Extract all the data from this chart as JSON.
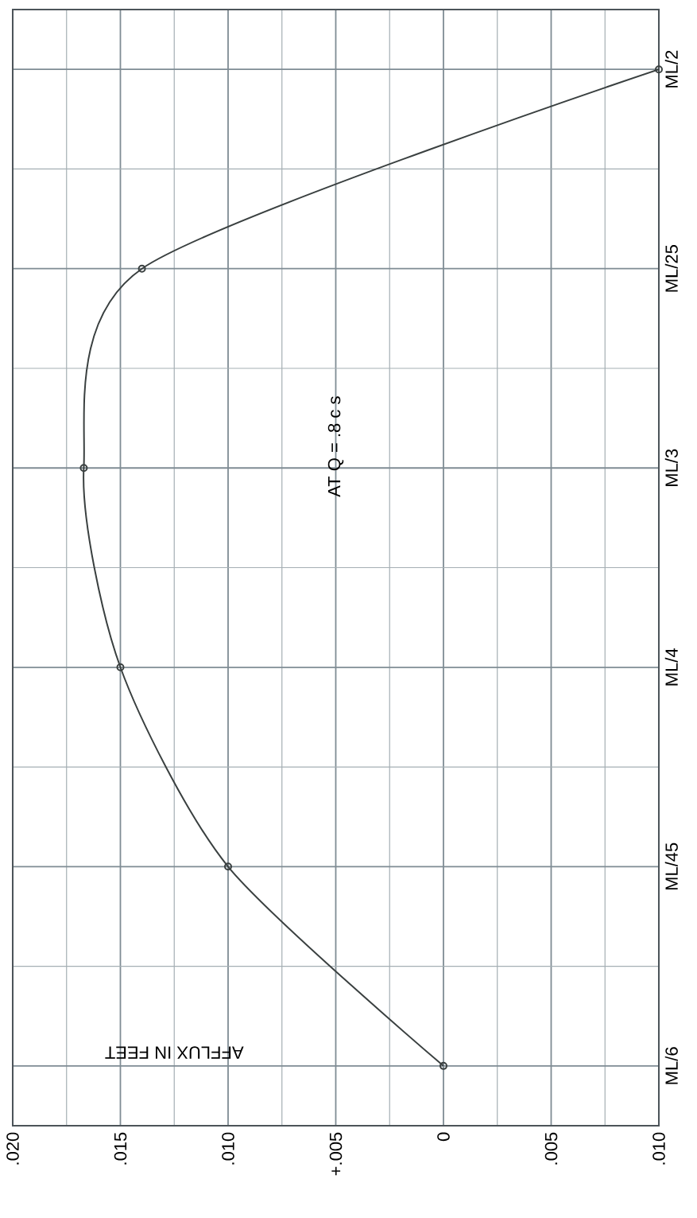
{
  "chart_data": {
    "type": "line",
    "orientation": "horizontal",
    "title": "AT Q = .8 c s",
    "xlabel": "AFFLUX IN FEET",
    "categories": [
      "ML/2",
      "ML/25",
      "ML/3",
      "ML/4",
      "ML/45",
      "ML/6"
    ],
    "values": [
      -0.01,
      0.014,
      0.0167,
      0.015,
      0.01,
      0
    ],
    "color": "#3a4040",
    "marker": "circle",
    "grid": true,
    "xlim": [
      0.02,
      -0.01
    ],
    "xticks": [
      {
        "value": 0.02,
        "label": ".020"
      },
      {
        "value": 0.015,
        "label": ".015"
      },
      {
        "value": 0.01,
        "label": ".010"
      },
      {
        "value": 0.005,
        "label": "+.005"
      },
      {
        "value": 0,
        "label": "0"
      },
      {
        "value": -0.005,
        "label": ".005"
      },
      {
        "value": -0.01,
        "label": ".010"
      }
    ]
  }
}
